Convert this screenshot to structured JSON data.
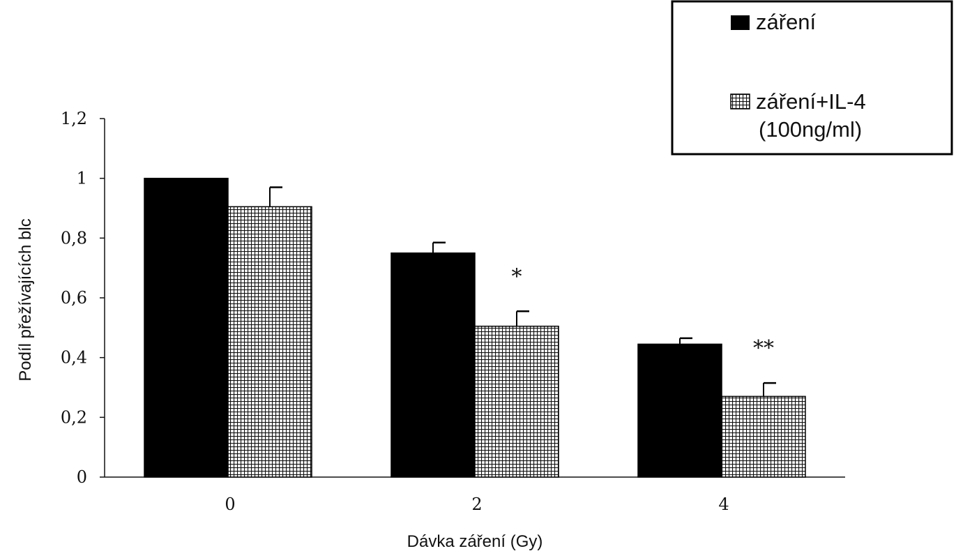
{
  "chart_data": {
    "type": "bar",
    "categories": [
      "0",
      "2",
      "4"
    ],
    "series": [
      {
        "name": "záření",
        "values": [
          1.0,
          0.75,
          0.445
        ],
        "error": [
          0,
          0.035,
          0.02
        ],
        "pattern": "solid",
        "color": "#000000"
      },
      {
        "name": "záření+IL-4 (100ng/ml)",
        "name_lines": [
          "záření+IL-4",
          "(100ng/ml)"
        ],
        "values": [
          0.905,
          0.505,
          0.27
        ],
        "error": [
          0.065,
          0.05,
          0.045
        ],
        "pattern": "crosshatch",
        "color": "#000000"
      }
    ],
    "significance": [
      "",
      "*",
      "**"
    ],
    "xlabel": "Dávka záření (Gy)",
    "ylabel": "Podíl přežívajících blc",
    "ylim": [
      0,
      1.2
    ],
    "yticks": [
      "0",
      "0,2",
      "0,4",
      "0,6",
      "0,8",
      "1",
      "1,2"
    ],
    "legend_position": "top-right",
    "grid": false
  }
}
